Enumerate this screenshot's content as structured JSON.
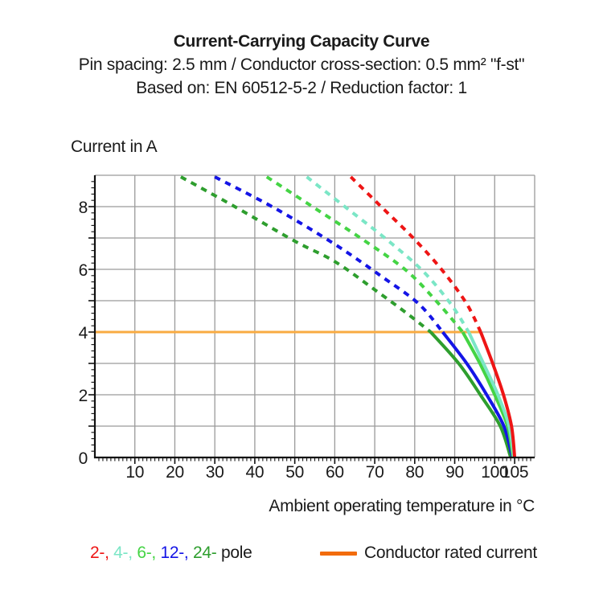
{
  "title": {
    "line1": "Current-Carrying Capacity Curve",
    "line2": "Pin spacing: 2.5 mm / Conductor cross-section: 0.5 mm² \"f-st\"",
    "line3": "Based on: EN 60512-5-2 / Reduction factor: 1"
  },
  "axes": {
    "y_label": "Current in A",
    "x_label": "Ambient operating temperature in °C"
  },
  "legend": {
    "pole_items": [
      {
        "text": "2-,",
        "color": "#ee1515"
      },
      {
        "text": "4-,",
        "color": "#7be6c6"
      },
      {
        "text": "6-,",
        "color": "#44d444"
      },
      {
        "text": "12-,",
        "color": "#1414e6"
      },
      {
        "text": "24-",
        "color": "#2e9e2e"
      }
    ],
    "pole_suffix": "pole",
    "rated": {
      "label": "Conductor rated current",
      "swatch_color": "#f26c0d"
    }
  },
  "chart_data": {
    "type": "line",
    "title": "Current-Carrying Capacity Curve",
    "xlabel": "Ambient operating temperature in °C",
    "ylabel": "Current in A",
    "xlim": [
      0,
      110
    ],
    "ylim": [
      0,
      9
    ],
    "x_tick_labels": [
      10,
      20,
      30,
      40,
      50,
      60,
      70,
      80,
      90,
      100,
      105
    ],
    "y_tick_labels": [
      0,
      2,
      4,
      6,
      8
    ],
    "x_grid_step": 10,
    "y_grid_step": 1,
    "x_minor_tick_step": 1,
    "y_minor_tick_step": 0.2,
    "grid": true,
    "grid_color": "#9a9a9a",
    "axis_color": "#111111",
    "legend_position": "bottom",
    "rated_current_line": {
      "name": "Conductor rated current",
      "current_a": 4,
      "x_start": 0,
      "x_end": 96.5,
      "color": "#f9ab42"
    },
    "series": [
      {
        "name": "2-pole",
        "color": "#ee1515",
        "style": "dashed_above_rated_then_solid",
        "dashed": [
          [
            64,
            8.95
          ],
          [
            72,
            7.95
          ],
          [
            80,
            6.95
          ],
          [
            87,
            5.95
          ],
          [
            93,
            4.9
          ],
          [
            96.5,
            4.0
          ]
        ],
        "solid": [
          [
            96.5,
            4.0
          ],
          [
            99.5,
            3.0
          ],
          [
            102.2,
            2.0
          ],
          [
            104.2,
            1.0
          ],
          [
            105,
            0
          ]
        ]
      },
      {
        "name": "4-pole",
        "color": "#7be6c6",
        "style": "dashed_above_rated_then_solid",
        "dashed": [
          [
            53,
            8.95
          ],
          [
            63,
            7.95
          ],
          [
            73,
            6.95
          ],
          [
            82,
            5.95
          ],
          [
            89,
            4.9
          ],
          [
            93.5,
            4.0
          ]
        ],
        "solid": [
          [
            93.5,
            4.0
          ],
          [
            97.2,
            3.0
          ],
          [
            100.8,
            2.0
          ],
          [
            103.6,
            1.0
          ],
          [
            104.8,
            0
          ]
        ]
      },
      {
        "name": "6-pole",
        "color": "#44d444",
        "style": "dashed_above_rated_then_solid",
        "dashed": [
          [
            43,
            8.95
          ],
          [
            55,
            7.95
          ],
          [
            67,
            6.95
          ],
          [
            78,
            5.95
          ],
          [
            86,
            4.9
          ],
          [
            92,
            4.0
          ]
        ],
        "solid": [
          [
            92,
            4.0
          ],
          [
            96.3,
            3.0
          ],
          [
            100,
            2.0
          ],
          [
            103.2,
            1.0
          ],
          [
            104.6,
            0
          ]
        ]
      },
      {
        "name": "12-pole",
        "color": "#1414e6",
        "style": "dashed_above_rated_then_solid",
        "dashed": [
          [
            30,
            8.95
          ],
          [
            45,
            7.95
          ],
          [
            60,
            6.8
          ],
          [
            72,
            5.75
          ],
          [
            81,
            4.9
          ],
          [
            87,
            4.0
          ]
        ],
        "solid": [
          [
            87,
            4.0
          ],
          [
            93,
            3.0
          ],
          [
            98,
            2.0
          ],
          [
            102.3,
            1.0
          ],
          [
            104.4,
            0
          ]
        ]
      },
      {
        "name": "24-pole",
        "color": "#2e9e2e",
        "style": "dashed_above_rated_then_solid",
        "dashed": [
          [
            21.5,
            8.95
          ],
          [
            35,
            8.0
          ],
          [
            50,
            6.9
          ],
          [
            60,
            6.25
          ],
          [
            70,
            5.35
          ],
          [
            78,
            4.6
          ],
          [
            84,
            4.0
          ]
        ],
        "solid": [
          [
            84,
            4.0
          ],
          [
            91,
            3.0
          ],
          [
            96.4,
            2.0
          ],
          [
            101.4,
            1.0
          ],
          [
            104,
            0
          ]
        ]
      }
    ]
  }
}
